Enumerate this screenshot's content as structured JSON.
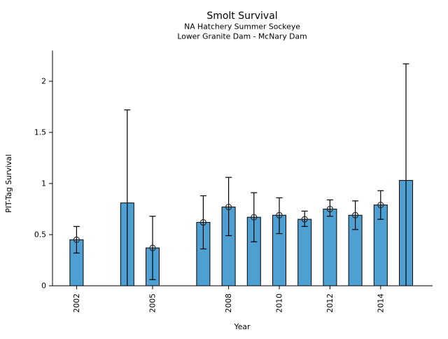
{
  "chart_data": {
    "type": "bar",
    "title": "Smolt Survival",
    "subtitle1": "NA Hatchery Summer Sockeye",
    "subtitle2": "Lower Granite Dam - McNary Dam",
    "xlabel": "Year",
    "ylabel": "PIT-Tag Survival",
    "ylim": [
      0,
      2.3
    ],
    "xlim": [
      2001.05,
      2016.05
    ],
    "yticks": [
      0,
      0.5,
      1,
      1.5,
      2
    ],
    "ytick_labels": [
      "0",
      "0.5",
      "1",
      "1.5",
      "2"
    ],
    "xticks": [
      2002,
      2005,
      2008,
      2010,
      2012,
      2014
    ],
    "xtick_labels": [
      "2002",
      "2005",
      "2008",
      "2010",
      "2012",
      "2014"
    ],
    "grid": false,
    "legend": null,
    "bar_color": "#4da0d1",
    "bar_edge_color": "#000000",
    "error_color": "#000000",
    "marker_style": "open-circle",
    "series": [
      {
        "name": "PIT-Tag Survival",
        "points": [
          {
            "year": 2002,
            "value": 0.45,
            "ci_low": 0.32,
            "ci_high": 0.58,
            "marker": true
          },
          {
            "year": 2004,
            "value": 0.81,
            "ci_low": 0.0,
            "ci_high": 1.72,
            "marker": false
          },
          {
            "year": 2005,
            "value": 0.37,
            "ci_low": 0.06,
            "ci_high": 0.68,
            "marker": true
          },
          {
            "year": 2007,
            "value": 0.62,
            "ci_low": 0.36,
            "ci_high": 0.88,
            "marker": true
          },
          {
            "year": 2008,
            "value": 0.77,
            "ci_low": 0.49,
            "ci_high": 1.06,
            "marker": true
          },
          {
            "year": 2009,
            "value": 0.67,
            "ci_low": 0.43,
            "ci_high": 0.91,
            "marker": true
          },
          {
            "year": 2010,
            "value": 0.69,
            "ci_low": 0.51,
            "ci_high": 0.86,
            "marker": true
          },
          {
            "year": 2011,
            "value": 0.65,
            "ci_low": 0.58,
            "ci_high": 0.73,
            "marker": true
          },
          {
            "year": 2012,
            "value": 0.75,
            "ci_low": 0.68,
            "ci_high": 0.84,
            "marker": true
          },
          {
            "year": 2013,
            "value": 0.69,
            "ci_low": 0.55,
            "ci_high": 0.83,
            "marker": true
          },
          {
            "year": 2014,
            "value": 0.79,
            "ci_low": 0.65,
            "ci_high": 0.93,
            "marker": true
          },
          {
            "year": 2015,
            "value": 1.03,
            "ci_low": 0.0,
            "ci_high": 2.17,
            "marker": false
          }
        ]
      }
    ]
  }
}
